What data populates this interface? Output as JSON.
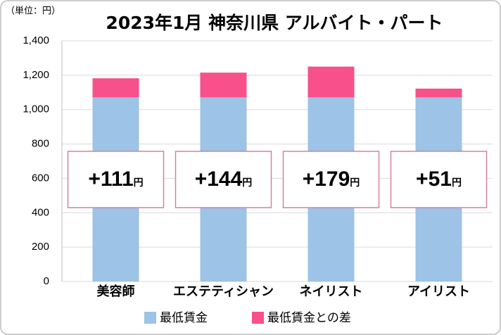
{
  "chart_data": {
    "type": "stacked_bar",
    "title": "2023年1月 神奈川県 アルバイト・パート",
    "unit_label": "（単位：円）",
    "categories": [
      "美容師",
      "エステティシャン",
      "ネイリスト",
      "アイリスト"
    ],
    "series": [
      {
        "name": "最低賃金",
        "color": "#9dc3e6",
        "values": [
          1071,
          1071,
          1071,
          1071
        ]
      },
      {
        "name": "最低賃金との差",
        "color": "#f7508a",
        "values": [
          111,
          144,
          179,
          51
        ],
        "value_labels": [
          "+111円",
          "+144円",
          "+179円",
          "+51円"
        ]
      }
    ],
    "ylim": [
      0,
      1400
    ],
    "yticks": [
      0,
      200,
      400,
      600,
      800,
      {
        "value": 1000,
        "label": "1,000"
      },
      {
        "value": 1200,
        "label": "1,200"
      },
      {
        "value": 1400,
        "label": "1,400"
      }
    ],
    "grid": true
  }
}
